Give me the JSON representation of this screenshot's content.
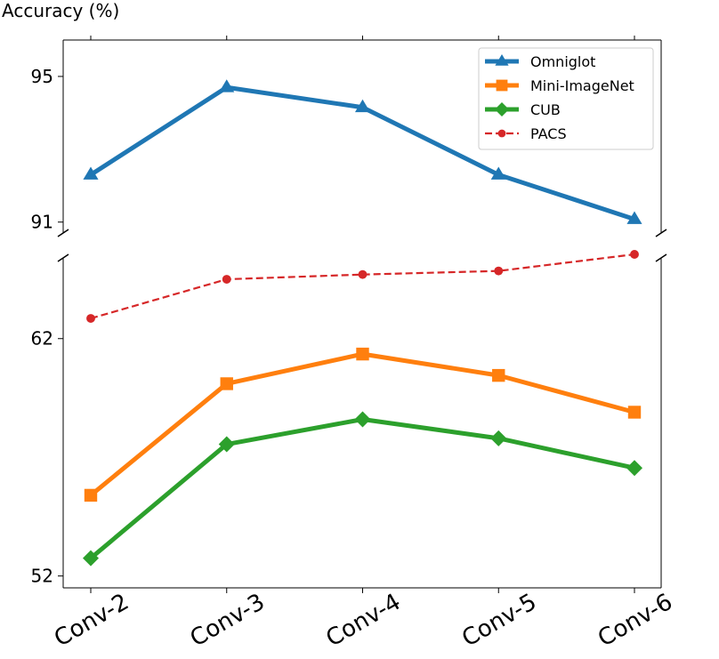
{
  "chart_data": {
    "type": "line",
    "ylabel": "Accuracy (%)",
    "xlabel": "",
    "categories": [
      "Conv-2",
      "Conv-3",
      "Conv-4",
      "Conv-5",
      "Conv-6"
    ],
    "broken_y_axis": true,
    "upper_panel": {
      "ylim": [
        90.7,
        96.0
      ],
      "yticks": [
        91,
        95
      ]
    },
    "lower_panel": {
      "ylim": [
        51.5,
        65.4
      ],
      "yticks": [
        52,
        62
      ]
    },
    "series": [
      {
        "name": "Omniglot",
        "panel": "upper",
        "color": "#1f77b4",
        "marker": "triangle",
        "linestyle": "solid",
        "values": [
          92.3,
          94.7,
          94.15,
          92.3,
          91.08
        ]
      },
      {
        "name": "Mini-ImageNet",
        "panel": "lower",
        "color": "#ff7f0e",
        "marker": "square",
        "linestyle": "solid",
        "values": [
          55.4,
          60.1,
          61.35,
          60.45,
          58.9
        ]
      },
      {
        "name": "CUB",
        "panel": "lower",
        "color": "#2ca02c",
        "marker": "diamond",
        "linestyle": "solid",
        "values": [
          52.75,
          57.55,
          58.6,
          57.8,
          56.55
        ]
      },
      {
        "name": "PACS",
        "panel": "lower",
        "color": "#d62728",
        "marker": "circle",
        "linestyle": "dashed",
        "values": [
          62.85,
          64.5,
          64.7,
          64.85,
          65.55
        ]
      }
    ],
    "legend": {
      "location": "top-right",
      "entries": [
        "Omniglot",
        "Mini-ImageNet",
        "CUB",
        "PACS"
      ]
    }
  }
}
